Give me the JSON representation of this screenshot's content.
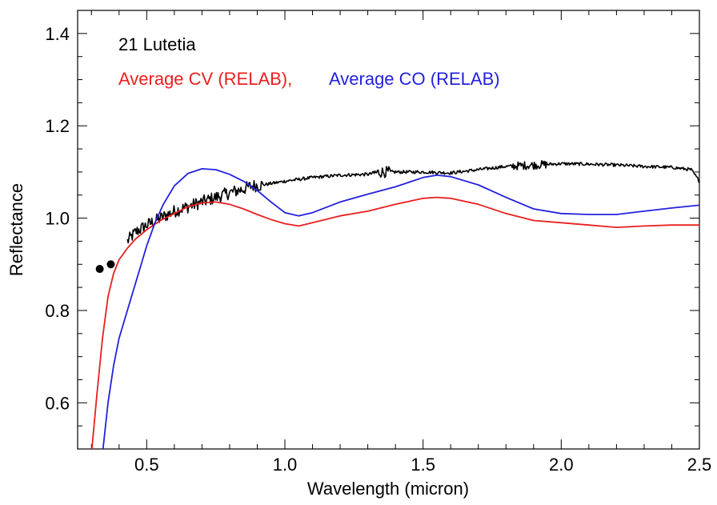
{
  "chart_data": {
    "type": "line",
    "title": "",
    "xlabel": "Wavelength (micron)",
    "ylabel": "Reflectance",
    "xlim": [
      0.25,
      2.5
    ],
    "ylim": [
      0.5,
      1.45
    ],
    "x_ticks": [
      0.5,
      1.0,
      1.5,
      2.0,
      2.5
    ],
    "x_tick_labels": [
      "0.5",
      "1.0",
      "1.5",
      "2.0",
      "2.5"
    ],
    "y_ticks": [
      0.6,
      0.8,
      1.0,
      1.2,
      1.4
    ],
    "y_tick_labels": [
      "0.6",
      "0.8",
      "1.0",
      "1.2",
      "1.4"
    ],
    "grid": false,
    "legend_placement": "top-left",
    "legend": {
      "line1": "21 Lutetia",
      "line2_red": "Average CV (RELAB),",
      "line2_blue": "Average CO (RELAB)"
    },
    "series": [
      {
        "name": "21 Lutetia",
        "color": "#000000",
        "style": "noisy-line",
        "points": [
          [
            0.43,
            0.95
          ],
          [
            0.46,
            0.97
          ],
          [
            0.5,
            0.985
          ],
          [
            0.55,
            1.0
          ],
          [
            0.6,
            1.015
          ],
          [
            0.65,
            1.025
          ],
          [
            0.7,
            1.035
          ],
          [
            0.75,
            1.045
          ],
          [
            0.8,
            1.055
          ],
          [
            0.85,
            1.063
          ],
          [
            0.88,
            1.07
          ],
          [
            0.92,
            1.072
          ],
          [
            1.0,
            1.08
          ],
          [
            1.1,
            1.088
          ],
          [
            1.2,
            1.093
          ],
          [
            1.3,
            1.095
          ],
          [
            1.35,
            1.1
          ],
          [
            1.4,
            1.1
          ],
          [
            1.5,
            1.1
          ],
          [
            1.6,
            1.098
          ],
          [
            1.7,
            1.105
          ],
          [
            1.8,
            1.112
          ],
          [
            1.9,
            1.115
          ],
          [
            2.0,
            1.118
          ],
          [
            2.1,
            1.117
          ],
          [
            2.2,
            1.115
          ],
          [
            2.3,
            1.112
          ],
          [
            2.4,
            1.11
          ],
          [
            2.47,
            1.105
          ],
          [
            2.5,
            1.08
          ]
        ],
        "photometry_points": [
          [
            0.33,
            0.89
          ],
          [
            0.37,
            0.9
          ]
        ]
      },
      {
        "name": "Average CV (RELAB)",
        "color": "#e8201e",
        "style": "line",
        "points": [
          [
            0.3,
            0.49
          ],
          [
            0.32,
            0.62
          ],
          [
            0.34,
            0.74
          ],
          [
            0.36,
            0.83
          ],
          [
            0.38,
            0.88
          ],
          [
            0.4,
            0.91
          ],
          [
            0.43,
            0.935
          ],
          [
            0.46,
            0.955
          ],
          [
            0.5,
            0.975
          ],
          [
            0.55,
            0.995
          ],
          [
            0.6,
            1.01
          ],
          [
            0.65,
            1.025
          ],
          [
            0.7,
            1.033
          ],
          [
            0.75,
            1.035
          ],
          [
            0.8,
            1.03
          ],
          [
            0.85,
            1.02
          ],
          [
            0.9,
            1.008
          ],
          [
            0.95,
            0.997
          ],
          [
            1.0,
            0.988
          ],
          [
            1.05,
            0.983
          ],
          [
            1.1,
            0.99
          ],
          [
            1.2,
            1.005
          ],
          [
            1.3,
            1.015
          ],
          [
            1.4,
            1.03
          ],
          [
            1.5,
            1.043
          ],
          [
            1.55,
            1.045
          ],
          [
            1.6,
            1.043
          ],
          [
            1.7,
            1.03
          ],
          [
            1.8,
            1.01
          ],
          [
            1.9,
            0.995
          ],
          [
            2.0,
            0.99
          ],
          [
            2.1,
            0.985
          ],
          [
            2.2,
            0.98
          ],
          [
            2.3,
            0.983
          ],
          [
            2.4,
            0.985
          ],
          [
            2.5,
            0.985
          ]
        ]
      },
      {
        "name": "Average CO (RELAB)",
        "color": "#2222dd",
        "style": "line",
        "points": [
          [
            0.34,
            0.49
          ],
          [
            0.36,
            0.6
          ],
          [
            0.38,
            0.68
          ],
          [
            0.4,
            0.74
          ],
          [
            0.42,
            0.78
          ],
          [
            0.44,
            0.82
          ],
          [
            0.47,
            0.88
          ],
          [
            0.5,
            0.94
          ],
          [
            0.53,
            0.99
          ],
          [
            0.56,
            1.03
          ],
          [
            0.6,
            1.07
          ],
          [
            0.65,
            1.097
          ],
          [
            0.7,
            1.107
          ],
          [
            0.75,
            1.105
          ],
          [
            0.8,
            1.095
          ],
          [
            0.85,
            1.08
          ],
          [
            0.9,
            1.06
          ],
          [
            0.95,
            1.035
          ],
          [
            1.0,
            1.012
          ],
          [
            1.05,
            1.005
          ],
          [
            1.1,
            1.012
          ],
          [
            1.2,
            1.035
          ],
          [
            1.3,
            1.052
          ],
          [
            1.4,
            1.068
          ],
          [
            1.5,
            1.088
          ],
          [
            1.55,
            1.093
          ],
          [
            1.6,
            1.09
          ],
          [
            1.7,
            1.072
          ],
          [
            1.8,
            1.045
          ],
          [
            1.9,
            1.02
          ],
          [
            2.0,
            1.01
          ],
          [
            2.1,
            1.008
          ],
          [
            2.2,
            1.008
          ],
          [
            2.3,
            1.015
          ],
          [
            2.4,
            1.022
          ],
          [
            2.5,
            1.028
          ]
        ]
      }
    ]
  }
}
